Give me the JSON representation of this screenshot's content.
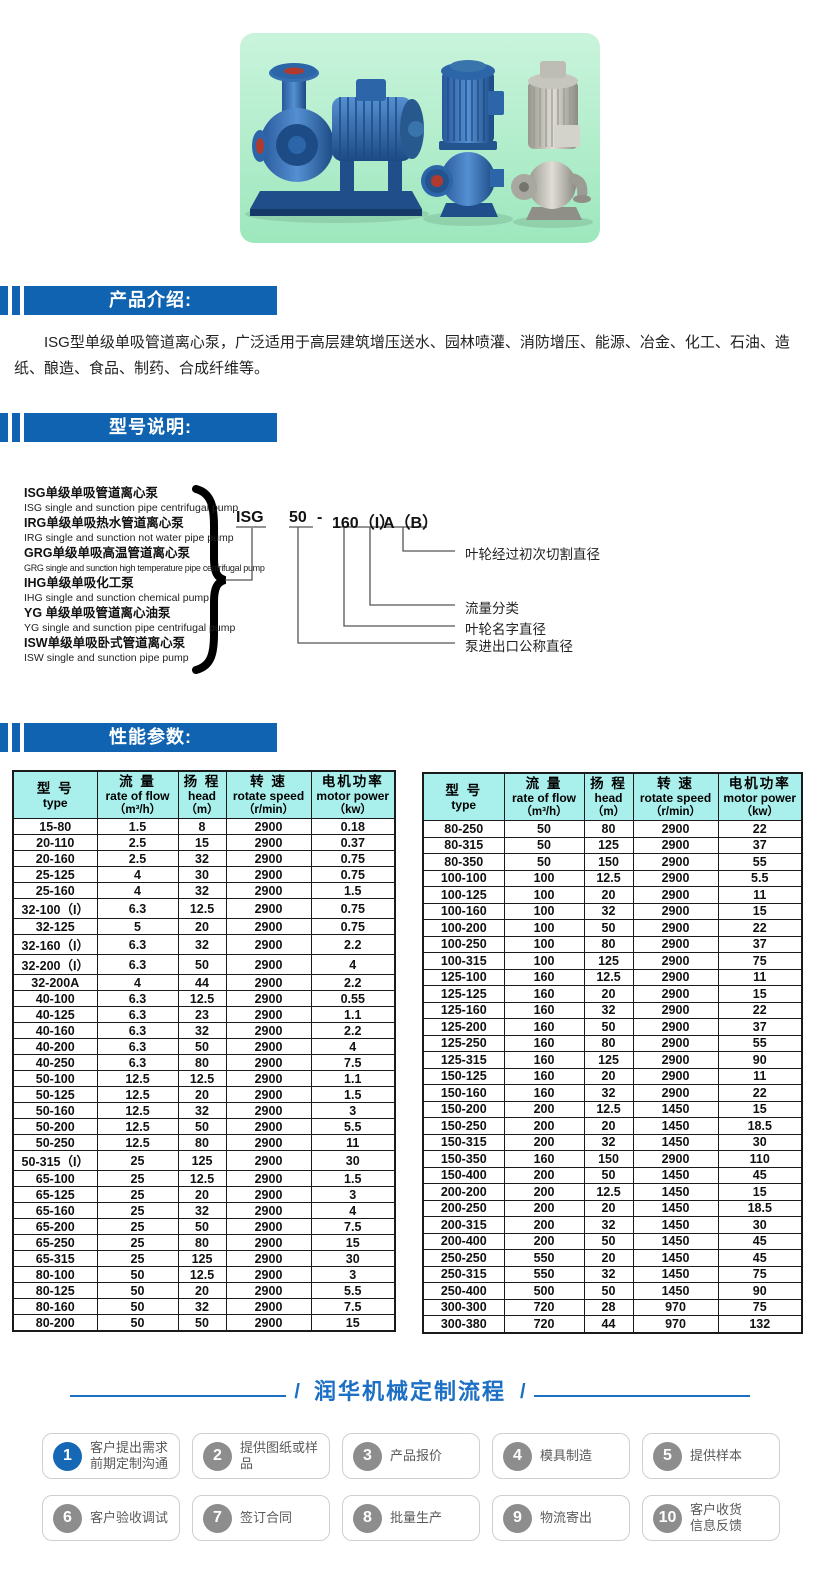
{
  "colors": {
    "section_bar_blue": "#0f63b0",
    "table_header_cyan": "#a9efec",
    "process_blue": "#1b6fc4",
    "step_circle_gray": "#8d8d8d",
    "photo_background_mint": "#aeeac6"
  },
  "photo": {
    "description": "three centrifugal pumps product photo"
  },
  "intro": {
    "bar_title": "产品介绍:",
    "text": "ISG型单级单吸管道离心泵，广泛适用于高层建筑增压送水、园林喷灌、消防增压、能源、冶金、化工、石油、造纸、酿造、食品、制药、合成纤维等。"
  },
  "model": {
    "bar_title": "型号说明:",
    "types": [
      {
        "text": "ISG单级单吸管道离心泵"
      },
      {
        "text": "ISG single and sunction pipe centrifugal pump"
      },
      {
        "text": "IRG单级单吸热水管道离心泵"
      },
      {
        "text": "IRG single and sunction not water pipe pump"
      },
      {
        "text": "GRG单级单吸高温管道离心泵"
      },
      {
        "text": "GRG single and sunction high temperature pipe centrifugal pump"
      },
      {
        "text": "IHG单级单吸化工泵"
      },
      {
        "text": "IHG single and sunction chemical pump"
      },
      {
        "text": "YG 单级单吸管道离心油泵"
      },
      {
        "text": "YG  single and sunction pipe centrifugal pump"
      },
      {
        "text": "ISW单级单吸卧式管道离心泵"
      },
      {
        "text": "ISW single and sunction pipe pump"
      }
    ],
    "code": {
      "series": "ISG",
      "size": "50",
      "dash": "-",
      "diameter": "160（I）",
      "cut": "A（B）"
    },
    "annotations": [
      "叶轮经过初次切割直径",
      "流量分类",
      "叶轮名字直径",
      "泵进出口公称直径"
    ]
  },
  "performance": {
    "bar_title": "性能参数:",
    "header": {
      "type_cn": "型 号",
      "type_en": "type",
      "flow_cn": "流 量",
      "flow_en": "rate of flow",
      "flow_unit": "（m³/h）",
      "head_cn": "扬 程",
      "head_en": "head",
      "head_unit": "（m）",
      "speed_cn": "转 速",
      "speed_en": "rotate speed",
      "speed_unit": "（r/min）",
      "power_cn": "电机功率",
      "power_en": "motor power",
      "power_unit": "（kw）"
    },
    "left_rows": [
      [
        "15-80",
        "1.5",
        "8",
        "2900",
        "0.18"
      ],
      [
        "20-110",
        "2.5",
        "15",
        "2900",
        "0.37"
      ],
      [
        "20-160",
        "2.5",
        "32",
        "2900",
        "0.75"
      ],
      [
        "25-125",
        "4",
        "30",
        "2900",
        "0.75"
      ],
      [
        "25-160",
        "4",
        "32",
        "2900",
        "1.5"
      ],
      [
        "32-100（I）",
        "6.3",
        "12.5",
        "2900",
        "0.75"
      ],
      [
        "32-125",
        "5",
        "20",
        "2900",
        "0.75"
      ],
      [
        "32-160（I）",
        "6.3",
        "32",
        "2900",
        "2.2"
      ],
      [
        "32-200（I）",
        "6.3",
        "50",
        "2900",
        "4"
      ],
      [
        "32-200A",
        "4",
        "44",
        "2900",
        "2.2"
      ],
      [
        "40-100",
        "6.3",
        "12.5",
        "2900",
        "0.55"
      ],
      [
        "40-125",
        "6.3",
        "23",
        "2900",
        "1.1"
      ],
      [
        "40-160",
        "6.3",
        "32",
        "2900",
        "2.2"
      ],
      [
        "40-200",
        "6.3",
        "50",
        "2900",
        "4"
      ],
      [
        "40-250",
        "6.3",
        "80",
        "2900",
        "7.5"
      ],
      [
        "50-100",
        "12.5",
        "12.5",
        "2900",
        "1.1"
      ],
      [
        "50-125",
        "12.5",
        "20",
        "2900",
        "1.5"
      ],
      [
        "50-160",
        "12.5",
        "32",
        "2900",
        "3"
      ],
      [
        "50-200",
        "12.5",
        "50",
        "2900",
        "5.5"
      ],
      [
        "50-250",
        "12.5",
        "80",
        "2900",
        "11"
      ],
      [
        "50-315（I）",
        "25",
        "125",
        "2900",
        "30"
      ],
      [
        "65-100",
        "25",
        "12.5",
        "2900",
        "1.5"
      ],
      [
        "65-125",
        "25",
        "20",
        "2900",
        "3"
      ],
      [
        "65-160",
        "25",
        "32",
        "2900",
        "4"
      ],
      [
        "65-200",
        "25",
        "50",
        "2900",
        "7.5"
      ],
      [
        "65-250",
        "25",
        "80",
        "2900",
        "15"
      ],
      [
        "65-315",
        "25",
        "125",
        "2900",
        "30"
      ],
      [
        "80-100",
        "50",
        "12.5",
        "2900",
        "3"
      ],
      [
        "80-125",
        "50",
        "20",
        "2900",
        "5.5"
      ],
      [
        "80-160",
        "50",
        "32",
        "2900",
        "7.5"
      ],
      [
        "80-200",
        "50",
        "50",
        "2900",
        "15"
      ]
    ],
    "right_rows": [
      [
        "80-250",
        "50",
        "80",
        "2900",
        "22"
      ],
      [
        "80-315",
        "50",
        "125",
        "2900",
        "37"
      ],
      [
        "80-350",
        "50",
        "150",
        "2900",
        "55"
      ],
      [
        "100-100",
        "100",
        "12.5",
        "2900",
        "5.5"
      ],
      [
        "100-125",
        "100",
        "20",
        "2900",
        "11"
      ],
      [
        "100-160",
        "100",
        "32",
        "2900",
        "15"
      ],
      [
        "100-200",
        "100",
        "50",
        "2900",
        "22"
      ],
      [
        "100-250",
        "100",
        "80",
        "2900",
        "37"
      ],
      [
        "100-315",
        "100",
        "125",
        "2900",
        "75"
      ],
      [
        "125-100",
        "160",
        "12.5",
        "2900",
        "11"
      ],
      [
        "125-125",
        "160",
        "20",
        "2900",
        "15"
      ],
      [
        "125-160",
        "160",
        "32",
        "2900",
        "22"
      ],
      [
        "125-200",
        "160",
        "50",
        "2900",
        "37"
      ],
      [
        "125-250",
        "160",
        "80",
        "2900",
        "55"
      ],
      [
        "125-315",
        "160",
        "125",
        "2900",
        "90"
      ],
      [
        "150-125",
        "160",
        "20",
        "2900",
        "11"
      ],
      [
        "150-160",
        "160",
        "32",
        "2900",
        "22"
      ],
      [
        "150-200",
        "200",
        "12.5",
        "1450",
        "15"
      ],
      [
        "150-250",
        "200",
        "20",
        "1450",
        "18.5"
      ],
      [
        "150-315",
        "200",
        "32",
        "1450",
        "30"
      ],
      [
        "150-350",
        "160",
        "150",
        "2900",
        "110"
      ],
      [
        "150-400",
        "200",
        "50",
        "1450",
        "45"
      ],
      [
        "200-200",
        "200",
        "12.5",
        "1450",
        "15"
      ],
      [
        "200-250",
        "200",
        "20",
        "1450",
        "18.5"
      ],
      [
        "200-315",
        "200",
        "32",
        "1450",
        "30"
      ],
      [
        "200-400",
        "200",
        "50",
        "1450",
        "45"
      ],
      [
        "250-250",
        "550",
        "20",
        "1450",
        "45"
      ],
      [
        "250-315",
        "550",
        "32",
        "1450",
        "75"
      ],
      [
        "250-400",
        "500",
        "50",
        "1450",
        "90"
      ],
      [
        "300-300",
        "720",
        "28",
        "970",
        "75"
      ],
      [
        "300-380",
        "720",
        "44",
        "970",
        "132"
      ]
    ]
  },
  "process": {
    "title": "润华机械定制流程",
    "slash_left": "/",
    "slash_right": "/",
    "steps": [
      {
        "num": "1",
        "lines": [
          "客户提出需求",
          "前期定制沟通"
        ]
      },
      {
        "num": "2",
        "lines": [
          "提供图纸或样",
          "品"
        ]
      },
      {
        "num": "3",
        "lines": [
          "产品报价"
        ]
      },
      {
        "num": "4",
        "lines": [
          "模具制造"
        ]
      },
      {
        "num": "5",
        "lines": [
          "提供样本"
        ]
      },
      {
        "num": "6",
        "lines": [
          "客户验收调试"
        ]
      },
      {
        "num": "7",
        "lines": [
          "签订合同"
        ]
      },
      {
        "num": "8",
        "lines": [
          "批量生产"
        ]
      },
      {
        "num": "9",
        "lines": [
          "物流寄出"
        ]
      },
      {
        "num": "10",
        "lines": [
          "客户收货",
          "信息反馈"
        ]
      }
    ]
  }
}
